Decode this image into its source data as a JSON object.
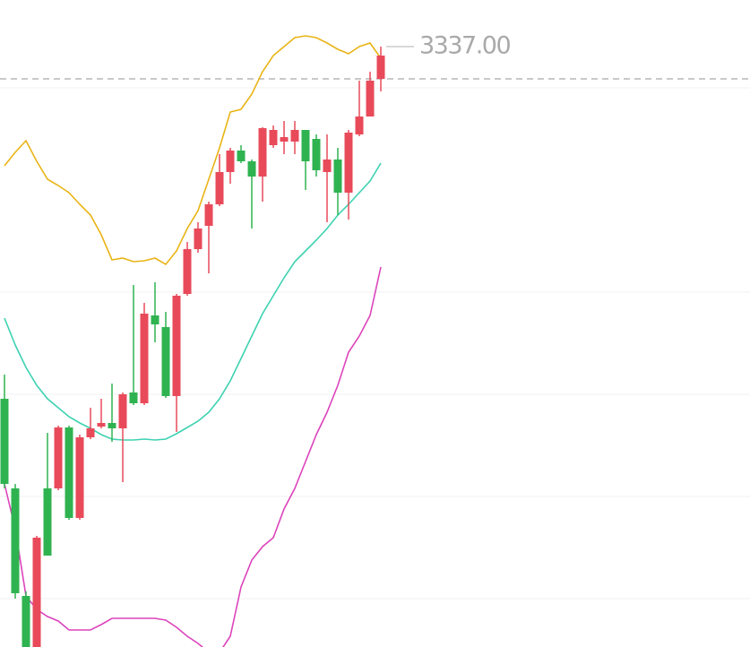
{
  "chart_data": {
    "type": "candlestick",
    "ylim": [
      3270.0,
      3342.2
    ],
    "yticks": [
      3332.4,
      3309.6,
      3298.2,
      3286.8,
      3275.4
    ],
    "grid": true,
    "up_color": "#e84a5a",
    "down_color": "#2fb350",
    "open": [
      3297.7,
      3287.7,
      3275.7,
      3270.0,
      3287.7,
      3287.7,
      3294.5,
      3284.4,
      3293.4,
      3294.6,
      3295.0,
      3294.4,
      3298.4,
      3297.2,
      3307.0,
      3305.7,
      3298.0,
      3309.4,
      3314.4,
      3317.0,
      3319.4,
      3323.0,
      3325.4,
      3324.2,
      3322.5,
      3326.0,
      3326.4,
      3326.4,
      3327.7,
      3326.7,
      3323.0,
      3324.4,
      3320.7,
      3327.2,
      3329.2,
      3333.4
    ],
    "close": [
      3288.2,
      3276.0,
      3270.0,
      3282.2,
      3280.2,
      3294.5,
      3284.4,
      3293.4,
      3294.4,
      3295.0,
      3294.4,
      3298.2,
      3297.2,
      3307.2,
      3306.0,
      3298.0,
      3309.2,
      3314.4,
      3316.7,
      3319.4,
      3323.0,
      3325.4,
      3324.2,
      3322.5,
      3327.9,
      3327.7,
      3326.9,
      3327.7,
      3324.2,
      3323.2,
      3324.4,
      3320.7,
      3327.4,
      3329.2,
      3333.2,
      3336.0
    ],
    "high": [
      3300.4,
      3288.2,
      3276.2,
      3282.4,
      3293.9,
      3294.7,
      3294.7,
      3293.7,
      3296.7,
      3297.7,
      3299.4,
      3298.4,
      3310.4,
      3308.4,
      3310.7,
      3307.4,
      3309.4,
      3315.2,
      3317.4,
      3319.7,
      3325.0,
      3325.7,
      3326.0,
      3324.4,
      3328.0,
      3328.2,
      3328.7,
      3328.7,
      3327.7,
      3327.2,
      3327.2,
      3325.7,
      3327.7,
      3333.2,
      3334.2,
      3337.0
    ],
    "low": [
      3287.7,
      3275.4,
      3270.0,
      3270.0,
      3280.2,
      3287.5,
      3284.2,
      3284.2,
      3293.2,
      3294.4,
      3292.9,
      3288.4,
      3297.0,
      3297.0,
      3304.0,
      3297.8,
      3294.0,
      3309.2,
      3314.0,
      3311.7,
      3319.2,
      3321.7,
      3324.0,
      3316.7,
      3319.7,
      3325.7,
      3325.0,
      3325.0,
      3321.0,
      3322.5,
      3317.4,
      3318.2,
      3317.7,
      3327.0,
      3329.2,
      3332.0
    ],
    "series": [
      {
        "color": "#e9b416",
        "values": [
          3323.7,
          3325.2,
          3326.5,
          3324.2,
          3322.2,
          3321.5,
          3320.7,
          3319.4,
          3318.2,
          3316.0,
          3313.2,
          3313.4,
          3313.0,
          3313.1,
          3313.4,
          3312.7,
          3314.2,
          3316.7,
          3318.7,
          3322.2,
          3325.7,
          3329.7,
          3330.0,
          3331.7,
          3334.2,
          3336.0,
          3337.0,
          3338.0,
          3338.2,
          3338.0,
          3337.4,
          3336.7,
          3336.2,
          3337.0,
          3337.4,
          3335.7
        ]
      },
      {
        "color": "#3dd2b2",
        "values": [
          3306.7,
          3303.7,
          3301.2,
          3299.2,
          3297.7,
          3296.7,
          3295.7,
          3295.0,
          3294.4,
          3293.7,
          3293.2,
          3293.1,
          3293.1,
          3293.2,
          3293.1,
          3293.2,
          3293.8,
          3294.5,
          3295.2,
          3296.2,
          3297.7,
          3299.7,
          3302.2,
          3304.7,
          3307.2,
          3309.2,
          3311.2,
          3313.0,
          3314.2,
          3315.4,
          3316.7,
          3318.2,
          3319.4,
          3320.7,
          3322.0,
          3324.0
        ]
      },
      {
        "color": "#dc44bb",
        "values": [
          3288.2,
          3283.2,
          3275.7,
          3274.2,
          3273.4,
          3272.9,
          3271.9,
          3271.9,
          3271.9,
          3272.5,
          3273.2,
          3273.2,
          3273.2,
          3273.2,
          3273.2,
          3273.0,
          3272.2,
          3271.2,
          3270.4,
          3269.4,
          3269.4,
          3271.2,
          3276.7,
          3279.7,
          3281.2,
          3282.2,
          3285.4,
          3287.7,
          3290.7,
          3293.7,
          3296.2,
          3299.2,
          3302.9,
          3304.7,
          3307.0,
          3312.4
        ]
      }
    ],
    "price_line": 3333.4,
    "high_marker": {
      "value": 3337.0,
      "label": "3337.00"
    }
  }
}
